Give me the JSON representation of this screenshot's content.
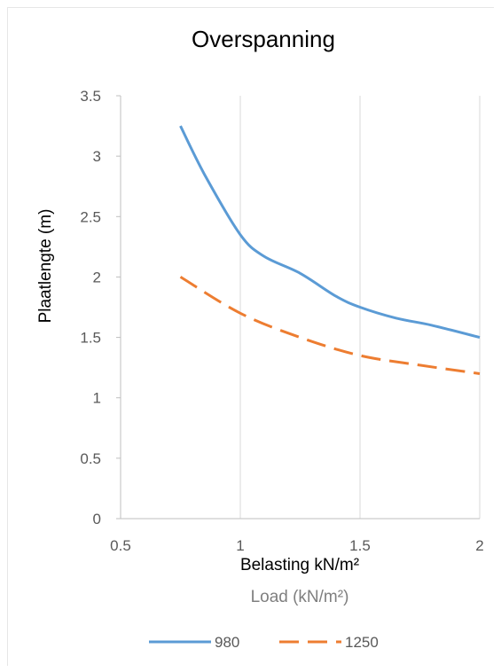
{
  "chart_data": {
    "type": "line",
    "title": "Overspanning",
    "xlabel": "Belasting kN/m²",
    "ylabel": "Plaatlengte (m)",
    "xlabel_ghost": "Load (kN/m²)",
    "xlim": [
      0.5,
      2
    ],
    "ylim": [
      0,
      3.5
    ],
    "xticks": [
      "0.5",
      "1",
      "1.5",
      "2"
    ],
    "yticks": [
      "0",
      "0.5",
      "1",
      "1.5",
      "2",
      "2.5",
      "3",
      "3.5"
    ],
    "grid": "vertical",
    "legend_position": "bottom",
    "series": [
      {
        "name": "980",
        "color": "#5b9bd5",
        "style": "solid",
        "points": [
          [
            0.75,
            3.25
          ],
          [
            0.85,
            2.85
          ],
          [
            1.0,
            2.35
          ],
          [
            1.1,
            2.17
          ],
          [
            1.25,
            2.03
          ],
          [
            1.4,
            1.84
          ],
          [
            1.5,
            1.75
          ],
          [
            1.65,
            1.66
          ],
          [
            1.8,
            1.6
          ],
          [
            2.0,
            1.5
          ]
        ]
      },
      {
        "name": "1250",
        "color": "#ed7d31",
        "style": "dashed",
        "points": [
          [
            0.75,
            2.0
          ],
          [
            1.0,
            1.7
          ],
          [
            1.25,
            1.5
          ],
          [
            1.5,
            1.35
          ],
          [
            1.75,
            1.27
          ],
          [
            2.0,
            1.2
          ]
        ]
      }
    ]
  }
}
